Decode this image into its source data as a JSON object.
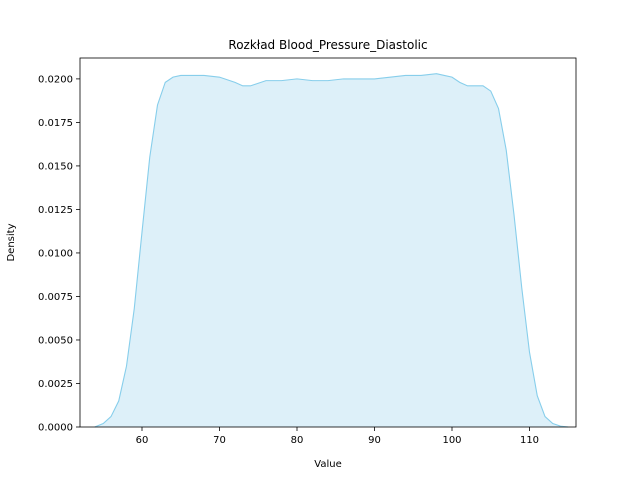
{
  "chart_data": {
    "type": "area",
    "title": "Rozkład Blood_Pressure_Diastolic",
    "xlabel": "Value",
    "ylabel": "Density",
    "xlim": [
      52,
      116
    ],
    "ylim": [
      0,
      0.0212
    ],
    "xticks": [
      60,
      70,
      80,
      90,
      100,
      110
    ],
    "yticks": [
      0.0,
      0.0025,
      0.005,
      0.0075,
      0.01,
      0.0125,
      0.015,
      0.0175,
      0.02
    ],
    "ytick_labels": [
      "0.0000",
      "0.0025",
      "0.0050",
      "0.0075",
      "0.0100",
      "0.0125",
      "0.0150",
      "0.0175",
      "0.0200"
    ],
    "grid": false,
    "series": [
      {
        "line_color": "#87ceeb",
        "fill_color": "#ddf0f9",
        "x": [
          53.9,
          55,
          56,
          57,
          58,
          59,
          60,
          61,
          62,
          63,
          64,
          65,
          66,
          68,
          70,
          72,
          73,
          74,
          76,
          78,
          80,
          82,
          84,
          86,
          88,
          90,
          92,
          94,
          96,
          98,
          99,
          100,
          101,
          102,
          103,
          104,
          105,
          106,
          107,
          108,
          109,
          110,
          111,
          112,
          113,
          114,
          115
        ],
        "y": [
          0.0,
          0.0002,
          0.0006,
          0.0015,
          0.0035,
          0.0068,
          0.0112,
          0.0155,
          0.0185,
          0.0198,
          0.0201,
          0.0202,
          0.0202,
          0.0202,
          0.0201,
          0.0198,
          0.0196,
          0.0196,
          0.0199,
          0.0199,
          0.02,
          0.0199,
          0.0199,
          0.02,
          0.02,
          0.02,
          0.0201,
          0.0202,
          0.0202,
          0.0203,
          0.0202,
          0.0201,
          0.0198,
          0.0196,
          0.0196,
          0.0196,
          0.0193,
          0.0183,
          0.0159,
          0.0122,
          0.008,
          0.0043,
          0.0018,
          0.0006,
          0.0002,
          5e-05,
          0.0
        ]
      }
    ]
  }
}
